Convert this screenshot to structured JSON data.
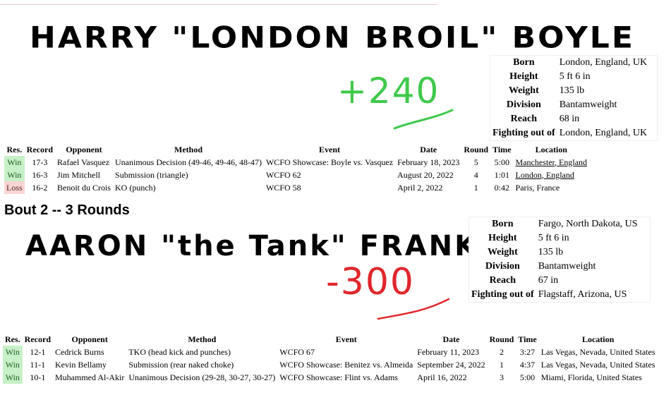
{
  "bout1": {
    "fighter_name": "HARRY \"LONDON BROIL\" BOYLE",
    "odds": "+240",
    "odds_color": "#3fc94b",
    "info": {
      "rows": [
        {
          "label": "Born",
          "value": "London, England, UK"
        },
        {
          "label": "Height",
          "value": "5 ft 6 in"
        },
        {
          "label": "Weight",
          "value": "135 lb"
        },
        {
          "label": "Division",
          "value": "Bantamweight"
        },
        {
          "label": "Reach",
          "value": "68 in"
        },
        {
          "label": "Fighting out of",
          "value": "London, England, UK"
        }
      ]
    },
    "record": {
      "headers": [
        "Res.",
        "Record",
        "Opponent",
        "Method",
        "Event",
        "Date",
        "Round",
        "Time",
        "Location"
      ],
      "rows": [
        {
          "res": "Win",
          "record": "17-3",
          "opponent": "Rafael Vasquez",
          "method": "Unanimous Decision (49-46, 49-46, 48-47)",
          "event": "WCFO Showcase: Boyle vs. Vasquez",
          "date": "February 18, 2023",
          "round": "5",
          "time": "5:00",
          "location": "Manchester, England"
        },
        {
          "res": "Win",
          "record": "16-3",
          "opponent": "Jim Mitchell",
          "method": "Submission (triangle)",
          "event": "WCFO 62",
          "date": "August 20, 2022",
          "round": "4",
          "time": "1:01",
          "location": "London, England"
        },
        {
          "res": "Loss",
          "record": "16-2",
          "opponent": "Benoit du Crois",
          "method": "KO (punch)",
          "event": "WCFO 58",
          "date": "April 2, 2022",
          "round": "1",
          "time": "0:42",
          "location": "Paris, France"
        }
      ]
    }
  },
  "bout2": {
    "heading": "Bout 2 -- 3 Rounds",
    "fighter_name": "AARON \"the Tank\" FRANK",
    "odds": "-300",
    "odds_color": "#e0262b",
    "info": {
      "rows": [
        {
          "label": "Born",
          "value": "Fargo, North Dakota, US"
        },
        {
          "label": "Height",
          "value": "5 ft 6 in"
        },
        {
          "label": "Weight",
          "value": "135 lb"
        },
        {
          "label": "Division",
          "value": "Bantamweight"
        },
        {
          "label": "Reach",
          "value": "67 in"
        },
        {
          "label": "Fighting out of",
          "value": "Flagstaff, Arizona, US"
        }
      ]
    },
    "record": {
      "headers": [
        "Res.",
        "Record",
        "Opponent",
        "Method",
        "Event",
        "Date",
        "Round",
        "Time",
        "Location"
      ],
      "rows": [
        {
          "res": "Win",
          "record": "12-1",
          "opponent": "Cedrick Burns",
          "method": "TKO (head kick and punches)",
          "event": "WCFO 67",
          "date": "February 11, 2023",
          "round": "2",
          "time": "3:27",
          "location": "Las Vegas, Nevada, United States"
        },
        {
          "res": "Win",
          "record": "11-1",
          "opponent": "Kevin Bellamy",
          "method": "Submission (rear naked choke)",
          "event": "WCFO Showcase: Benitez vs. Almeida",
          "date": "September 24, 2022",
          "round": "1",
          "time": "4:37",
          "location": "Las Vegas, Nevada, United States"
        },
        {
          "res": "Win",
          "record": "10-1",
          "opponent": "Muhammed Al-Akir",
          "method": "Unanimous Decision (29-28, 30-27, 30-27)",
          "event": "WCFO Showcase: Flint vs. Adams",
          "date": "April 16, 2022",
          "round": "3",
          "time": "5:00",
          "location": "Miami, Florida, United States"
        }
      ]
    }
  }
}
